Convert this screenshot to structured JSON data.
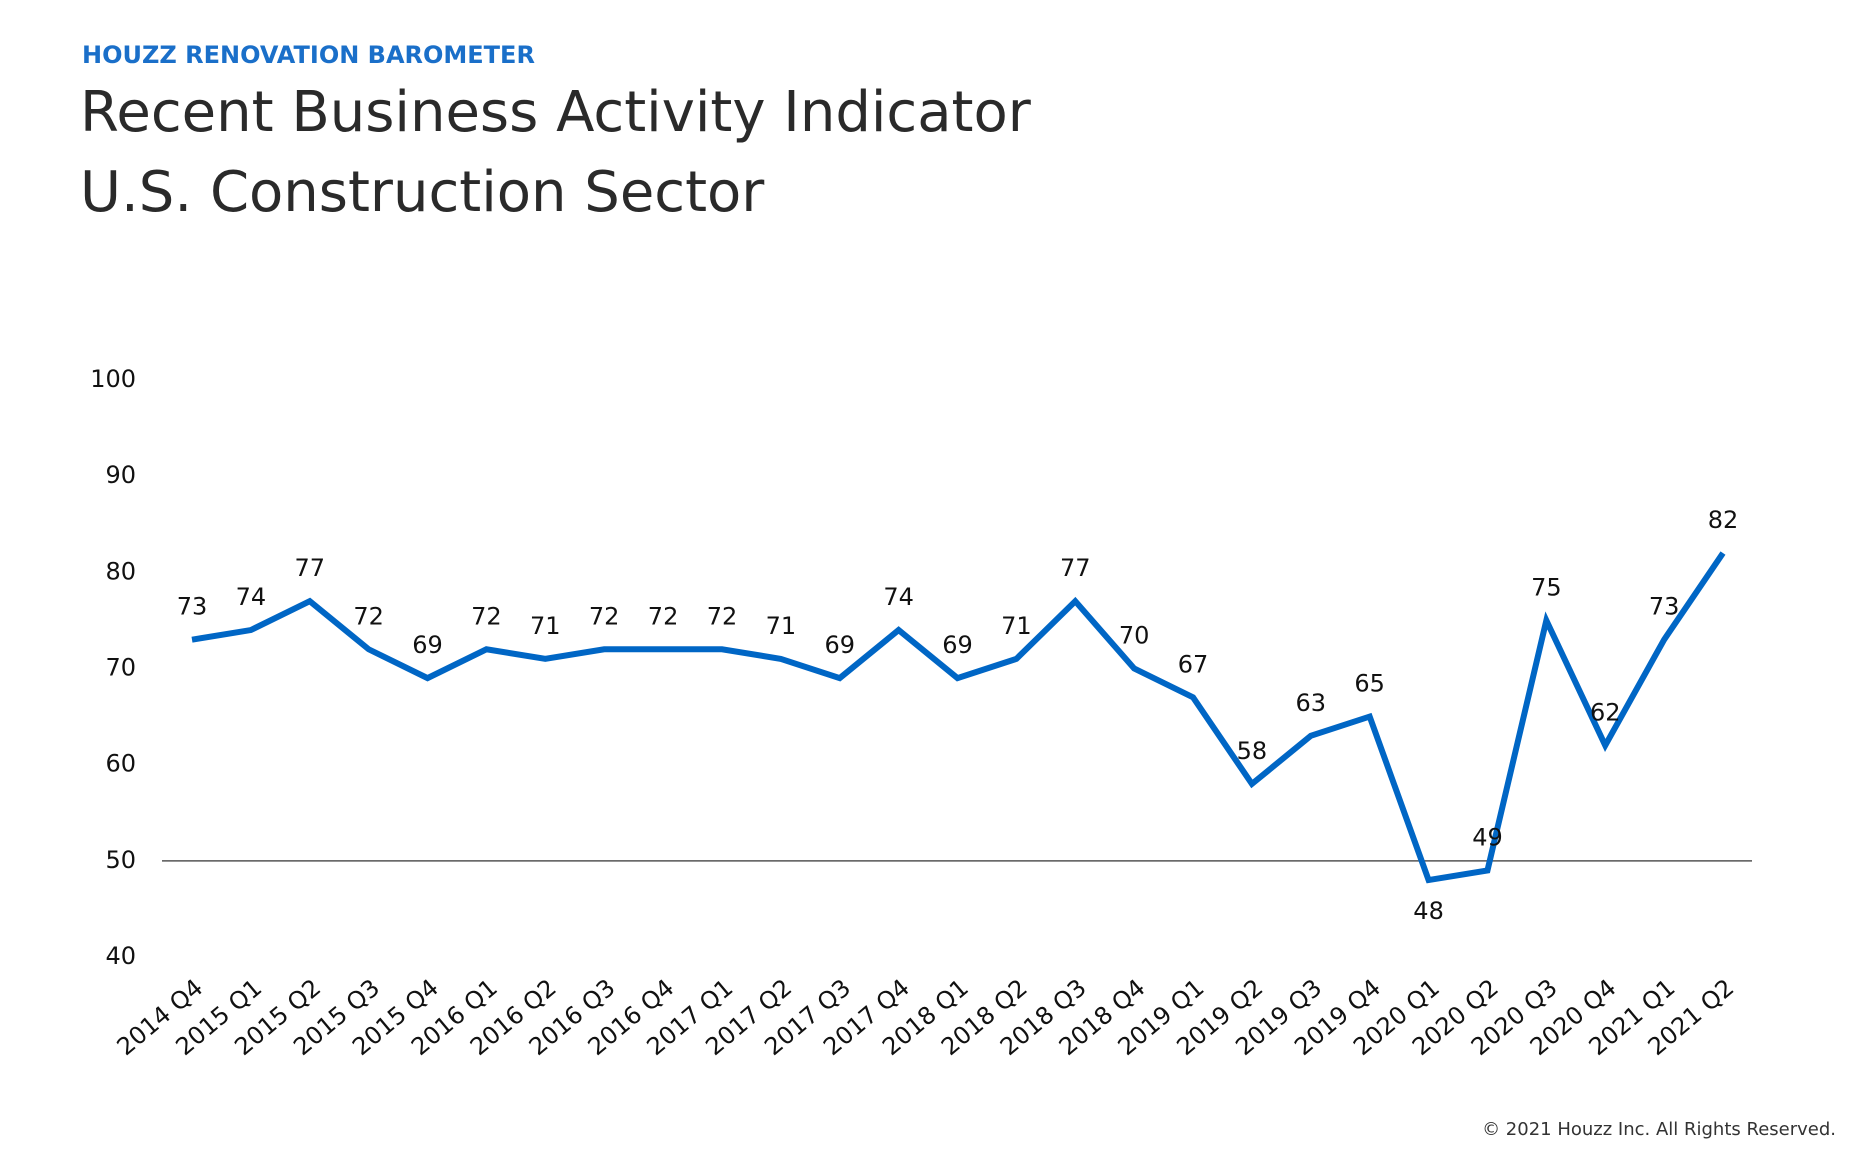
{
  "chart_data": {
    "type": "line",
    "header": "HOUZZ RENOVATION BAROMETER",
    "title": [
      "Recent Business Activity Indicator",
      "U.S. Construction Sector"
    ],
    "footer": "© 2021 Houzz Inc. All Rights Reserved.",
    "categories": [
      "2014 Q4",
      "2015 Q1",
      "2015 Q2",
      "2015 Q3",
      "2015 Q4",
      "2016 Q1",
      "2016 Q2",
      "2016 Q3",
      "2016 Q4",
      "2017 Q1",
      "2017 Q2",
      "2017 Q3",
      "2017 Q4",
      "2018 Q1",
      "2018 Q2",
      "2018 Q3",
      "2018 Q4",
      "2019 Q1",
      "2019 Q2",
      "2019 Q3",
      "2019 Q4",
      "2020 Q1",
      "2020 Q2",
      "2020 Q3",
      "2020 Q4",
      "2021 Q1",
      "2021 Q2"
    ],
    "values": [
      73,
      74,
      77,
      72,
      69,
      72,
      71,
      72,
      72,
      72,
      71,
      69,
      74,
      69,
      71,
      77,
      70,
      67,
      58,
      63,
      65,
      48,
      49,
      75,
      62,
      73,
      82
    ],
    "color": "#0066c5",
    "ylim": [
      40,
      100
    ],
    "yticks": [
      40,
      50,
      60,
      70,
      80,
      90,
      100
    ],
    "reference_line": 50
  }
}
